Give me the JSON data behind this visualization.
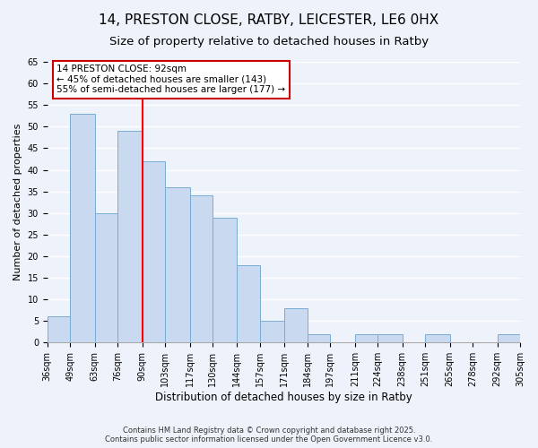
{
  "title": "14, PRESTON CLOSE, RATBY, LEICESTER, LE6 0HX",
  "subtitle": "Size of property relative to detached houses in Ratby",
  "xlabel": "Distribution of detached houses by size in Ratby",
  "ylabel": "Number of detached properties",
  "bin_edges": [
    36,
    49,
    63,
    76,
    90,
    103,
    117,
    130,
    144,
    157,
    171,
    184,
    197,
    211,
    224,
    238,
    251,
    265,
    278,
    292,
    305
  ],
  "bar_heights": [
    6,
    53,
    30,
    49,
    42,
    36,
    34,
    29,
    18,
    5,
    8,
    2,
    0,
    2,
    2,
    0,
    2,
    0,
    0,
    2
  ],
  "bar_color": "#c8d9f0",
  "bar_edge_color": "#7aadd4",
  "red_line_x": 90,
  "ylim": [
    0,
    65
  ],
  "yticks": [
    0,
    5,
    10,
    15,
    20,
    25,
    30,
    35,
    40,
    45,
    50,
    55,
    60,
    65
  ],
  "annotation_title": "14 PRESTON CLOSE: 92sqm",
  "annotation_line2": "← 45% of detached houses are smaller (143)",
  "annotation_line3": "55% of semi-detached houses are larger (177) →",
  "annotation_box_edge": "#cc0000",
  "annotation_box_bg": "white",
  "footnote1": "Contains HM Land Registry data © Crown copyright and database right 2025.",
  "footnote2": "Contains public sector information licensed under the Open Government Licence v3.0.",
  "bg_color": "#eef2fa",
  "plot_bg_color": "#eef2fa",
  "grid_color": "white",
  "title_fontsize": 11,
  "subtitle_fontsize": 9.5,
  "tick_label_fontsize": 7,
  "ylabel_fontsize": 8,
  "xlabel_fontsize": 8.5,
  "footnote_fontsize": 6,
  "ann_fontsize": 7.5
}
